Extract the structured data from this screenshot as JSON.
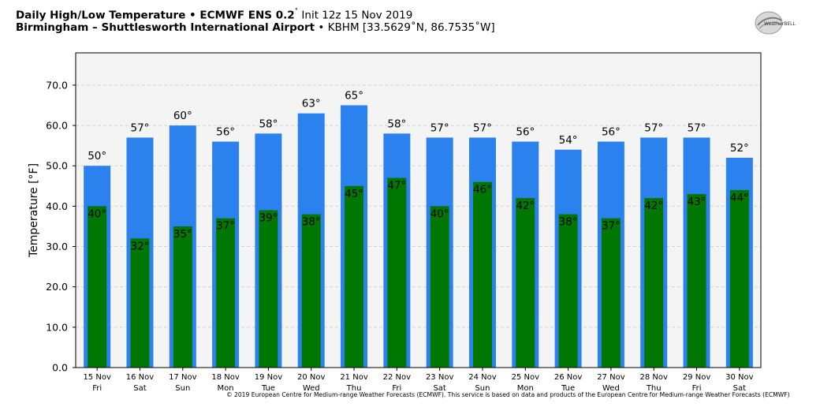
{
  "header": {
    "line1_bold": "Daily High/Low Temperature • ECMWF ENS 0.2",
    "line1_deg": "˚",
    "line1_rest": " Init 12z 15 Nov 2019",
    "line2_bold": "Birmingham – Shuttlesworth International Airport",
    "line2_rest": " • KBHM [33.5629˚N, 86.7535˚W]"
  },
  "logo": {
    "icon": "weatherbell-logo",
    "text": "WeatherBELL"
  },
  "footer": {
    "text": "© 2019 European Centre for Medium-range Weather Forecasts (ECMWF). This service is based on data and products of the European Centre for Medium-range Weather Forecasts (ECMWF)"
  },
  "colors": {
    "high": "#2b82ef",
    "low": "#007700",
    "plot_bg": "#f4f4f4",
    "grid": "#d4d4d4"
  },
  "chart_data": {
    "type": "bar",
    "title": "Daily High/Low Temperature",
    "ylabel": "Temperature [°F]",
    "xlabel": "",
    "ylim": [
      0,
      78
    ],
    "yticks": [
      0,
      10,
      20,
      30,
      40,
      50,
      60,
      70
    ],
    "ytick_labels": [
      "0.0",
      "10.0",
      "20.0",
      "30.0",
      "40.0",
      "50.0",
      "60.0",
      "70.0"
    ],
    "grid": true,
    "categories": [
      "15 Nov",
      "16 Nov",
      "17 Nov",
      "18 Nov",
      "19 Nov",
      "20 Nov",
      "21 Nov",
      "22 Nov",
      "23 Nov",
      "24 Nov",
      "25 Nov",
      "26 Nov",
      "27 Nov",
      "28 Nov",
      "29 Nov",
      "30 Nov"
    ],
    "weekdays": [
      "Fri",
      "Sat",
      "Sun",
      "Mon",
      "Tue",
      "Wed",
      "Thu",
      "Fri",
      "Sat",
      "Sun",
      "Mon",
      "Tue",
      "Wed",
      "Thu",
      "Fri",
      "Sat"
    ],
    "series": [
      {
        "values": [
          50,
          57,
          60,
          56,
          58,
          63,
          65,
          58,
          57,
          57,
          56,
          54,
          56,
          57,
          57,
          52
        ]
      },
      {
        "values": [
          40,
          32,
          35,
          37,
          39,
          38,
          45,
          47,
          40,
          46,
          42,
          38,
          37,
          42,
          43,
          44
        ]
      }
    ],
    "label_suffix": "°"
  }
}
